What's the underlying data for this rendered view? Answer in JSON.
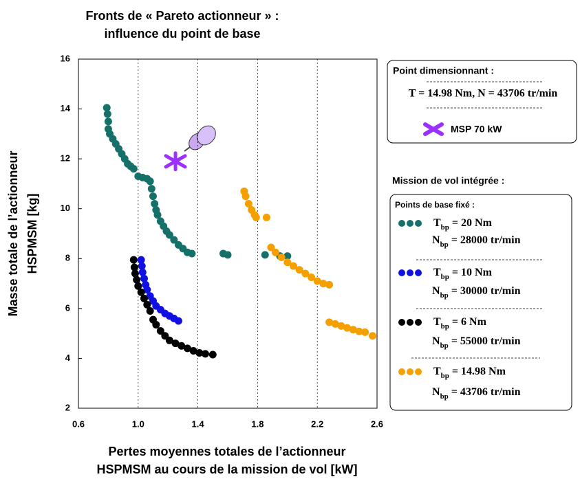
{
  "chart_data": {
    "type": "scatter",
    "title": [
      "Fronts de « Pareto actionneur » :",
      "influence du point de base"
    ],
    "x_label": [
      "Pertes moyennes totales de l’actionneur",
      "HSPMSM au cours de la mission de vol [kW]"
    ],
    "y_label": [
      "Masse totale de l’actionneur",
      "HSPMSM [kg]"
    ],
    "xlim": [
      0.6,
      2.6
    ],
    "ylim": [
      2,
      16
    ],
    "xticks": [
      0.6,
      {
        "value": 1,
        "label": "1.0"
      },
      1.4,
      1.8,
      2.2,
      2.6
    ],
    "yticks": [
      2,
      4,
      6,
      8,
      10,
      12,
      14,
      16
    ],
    "grid": true,
    "box_title": "Point dimensionnant :",
    "box_text": "T = 14.98 Nm,  N = 43706 tr/min",
    "marker": {
      "name": "MSP 70 kW",
      "x": 1.25,
      "y": 11.9,
      "color": "#9b30ff"
    },
    "legend_title": "Mission de vol intégrée :",
    "legend_subtitle": "Points de base fixé :",
    "series": [
      {
        "name": "Tbp = 20 Nm",
        "name2": "Nbp = 28000 tr/min",
        "color": "#16706a",
        "x": [
          0.79,
          0.795,
          0.8,
          0.8,
          0.81,
          0.83,
          0.85,
          0.87,
          0.89,
          0.91,
          0.93,
          0.95,
          0.97,
          1.0,
          1.03,
          1.06,
          1.08,
          1.09,
          1.1,
          1.11,
          1.12,
          1.13,
          1.15,
          1.17,
          1.19,
          1.21,
          1.24,
          1.27,
          1.3,
          1.33,
          1.36,
          1.57,
          1.6,
          1.85,
          1.95,
          2.0
        ],
        "y": [
          14.05,
          13.8,
          13.5,
          13.2,
          13.0,
          12.8,
          12.6,
          12.4,
          12.2,
          12.0,
          11.8,
          11.7,
          11.6,
          11.3,
          11.25,
          11.2,
          11.1,
          10.8,
          10.5,
          10.2,
          9.95,
          9.75,
          9.5,
          9.3,
          9.1,
          8.95,
          8.75,
          8.55,
          8.4,
          8.25,
          8.2,
          8.2,
          8.15,
          8.15,
          8.1,
          8.1
        ]
      },
      {
        "name": "Tbp = 10 Nm",
        "name2": "Nbp = 30000 tr/min",
        "color": "#1010e0",
        "x": [
          1.02,
          1.025,
          1.03,
          1.04,
          1.05,
          1.06,
          1.08,
          1.1,
          1.12,
          1.15,
          1.18,
          1.21,
          1.24,
          1.27
        ],
        "y": [
          7.95,
          7.7,
          7.45,
          7.2,
          6.95,
          6.75,
          6.5,
          6.3,
          6.1,
          5.95,
          5.8,
          5.7,
          5.6,
          5.5
        ]
      },
      {
        "name": "Tbp = 6 Nm",
        "name2": "Nbp = 55000 tr/min",
        "color": "#000000",
        "x": [
          0.97,
          0.975,
          0.98,
          0.99,
          1.0,
          1.02,
          1.04,
          1.06,
          1.08,
          1.1,
          1.12,
          1.15,
          1.18,
          1.21,
          1.25,
          1.29,
          1.33,
          1.37,
          1.41,
          1.45,
          1.5
        ],
        "y": [
          7.95,
          7.65,
          7.4,
          7.15,
          6.9,
          6.65,
          6.4,
          6.15,
          5.9,
          5.55,
          5.35,
          5.1,
          4.9,
          4.72,
          4.6,
          4.5,
          4.4,
          4.3,
          4.22,
          4.18,
          4.15
        ]
      },
      {
        "name": "Tbp = 14.98 Nm",
        "name2": "Nbp = 43706 tr/min",
        "color": "#f5a000",
        "x": [
          1.71,
          1.72,
          1.74,
          1.76,
          1.78,
          1.79,
          1.86,
          1.89,
          1.92,
          1.96,
          2.0,
          2.04,
          2.08,
          2.12,
          2.16,
          2.2,
          2.24,
          2.28,
          2.28,
          2.32,
          2.36,
          2.4,
          2.44,
          2.48,
          2.52,
          2.57
        ],
        "y": [
          10.7,
          10.5,
          10.2,
          9.95,
          9.75,
          9.65,
          9.65,
          8.45,
          8.25,
          8.05,
          7.85,
          7.7,
          7.55,
          7.4,
          7.25,
          7.1,
          7.0,
          6.95,
          5.45,
          5.38,
          5.3,
          5.22,
          5.15,
          5.08,
          5.05,
          4.9
        ]
      }
    ]
  }
}
